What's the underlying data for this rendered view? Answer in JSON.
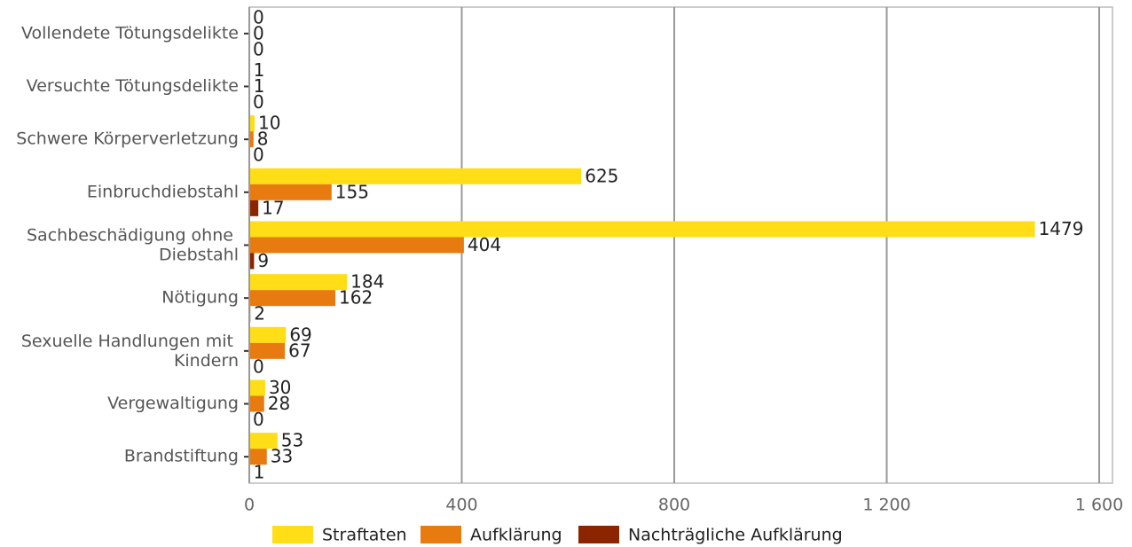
{
  "chart_data": {
    "type": "barh",
    "categories": [
      "Vollendete Tötungsdelikte",
      "Versuchte Tötungsdelikte",
      "Schwere Körperverletzung",
      "Einbruchdiebstahl",
      "Sachbeschädigung ohne Diebstahl",
      "Nötigung",
      "Sexuelle Handlungen mit Kindern",
      "Vergewaltigung",
      "Brandstiftung"
    ],
    "series": [
      {
        "name": "Straftaten",
        "color": "#FFDD17",
        "values": [
          0,
          1,
          10,
          625,
          1479,
          184,
          69,
          30,
          53
        ]
      },
      {
        "name": "Aufklärung",
        "color": "#E87B10",
        "values": [
          0,
          1,
          8,
          155,
          404,
          162,
          67,
          28,
          33
        ]
      },
      {
        "name": "Nachträgliche Aufklärung",
        "color": "#8B2500",
        "values": [
          0,
          0,
          0,
          17,
          9,
          2,
          0,
          0,
          1
        ]
      }
    ],
    "xlim": [
      0,
      1625
    ],
    "xticks": [
      0,
      400,
      800,
      {
        "value": 1200,
        "label": "1 200"
      },
      {
        "value": 1600,
        "label": "1 600"
      }
    ],
    "grid": true,
    "legend": "bottom"
  }
}
